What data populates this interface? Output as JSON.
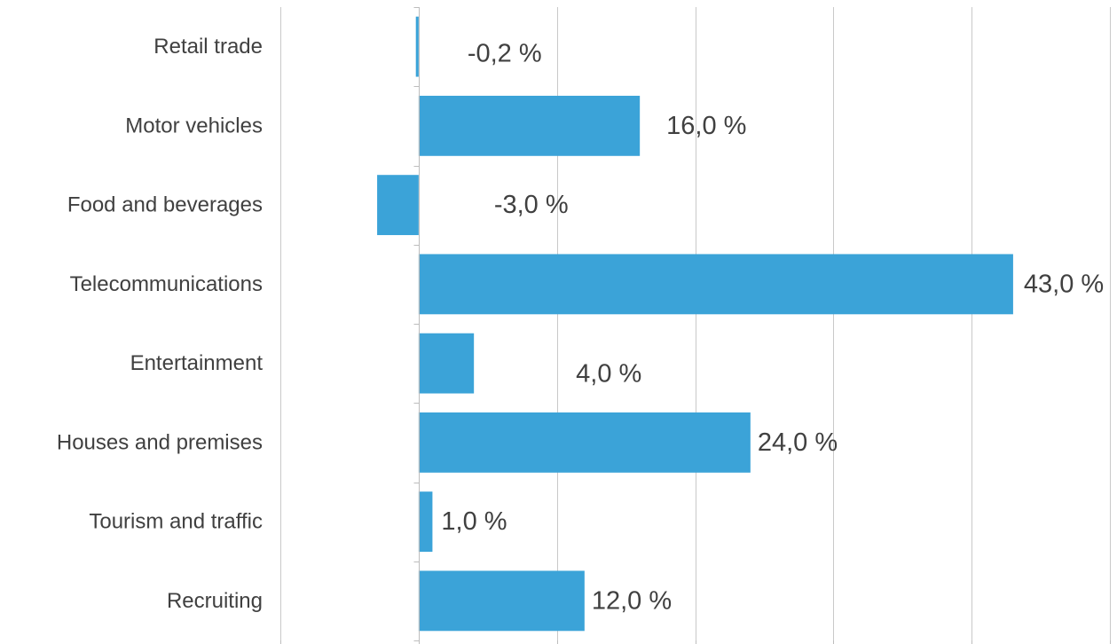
{
  "chart_data": {
    "type": "bar",
    "orientation": "horizontal",
    "categories": [
      "Retail trade",
      "Motor vehicles",
      "Food and beverages",
      "Telecommunications",
      "Entertainment",
      "Houses and premises",
      "Tourism and traffic",
      "Recruiting"
    ],
    "values": [
      -0.2,
      16.0,
      -3.0,
      43.0,
      4.0,
      24.0,
      1.0,
      12.0
    ],
    "data_labels": [
      "-0,2 %",
      "16,0 %",
      "-3,0 %",
      "43,0 %",
      "4,0 %",
      "24,0 %",
      "1,0 %",
      "12,0 %"
    ],
    "xlim": [
      -10,
      50
    ],
    "x_gridlines": [
      0,
      10,
      20,
      30,
      40,
      50
    ],
    "grid": "vertical",
    "legend": "none",
    "title": "",
    "xlabel": "",
    "ylabel": "",
    "colors": {
      "bar": "#3ba3d8",
      "grid": "#c9c9c9",
      "text": "#404040"
    }
  }
}
